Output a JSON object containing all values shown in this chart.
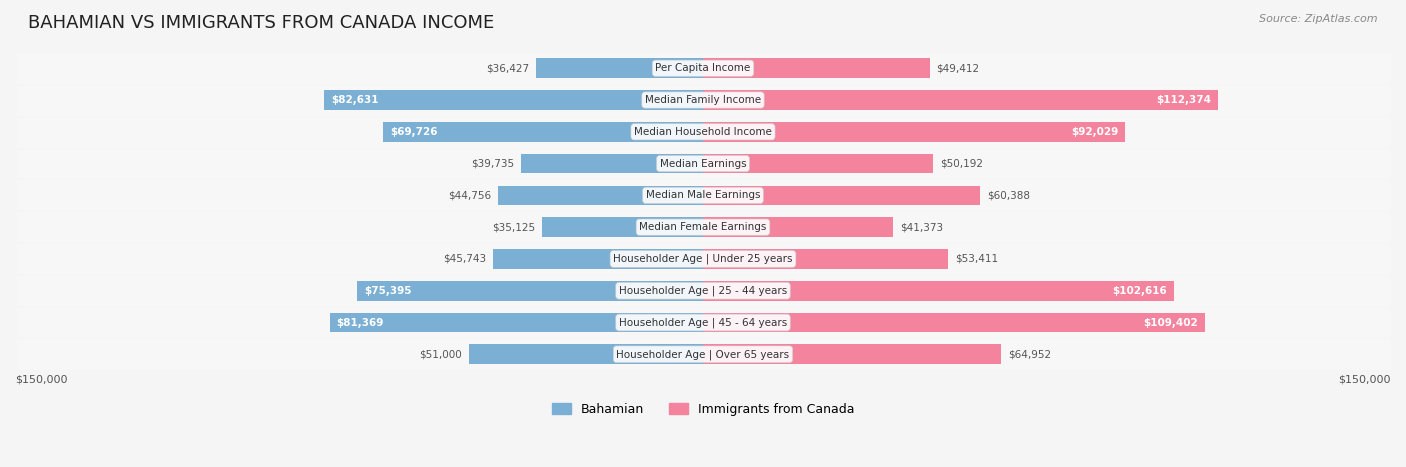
{
  "title": "BAHAMIAN VS IMMIGRANTS FROM CANADA INCOME",
  "source": "Source: ZipAtlas.com",
  "categories": [
    "Per Capita Income",
    "Median Family Income",
    "Median Household Income",
    "Median Earnings",
    "Median Male Earnings",
    "Median Female Earnings",
    "Householder Age | Under 25 years",
    "Householder Age | 25 - 44 years",
    "Householder Age | 45 - 64 years",
    "Householder Age | Over 65 years"
  ],
  "bahamian_values": [
    36427,
    82631,
    69726,
    39735,
    44756,
    35125,
    45743,
    75395,
    81369,
    51000
  ],
  "canada_values": [
    49412,
    112374,
    92029,
    50192,
    60388,
    41373,
    53411,
    102616,
    109402,
    64952
  ],
  "bahamian_color": "#7bafd4",
  "canada_color": "#f4849e",
  "bahamian_color_dark": "#5a8fc0",
  "canada_color_dark": "#e8607a",
  "max_value": 150000,
  "background_color": "#f5f5f5",
  "row_bg_color": "#f0f0f0",
  "legend_bahamian": "Bahamian",
  "legend_canada": "Immigrants from Canada",
  "xlabel_left": "$150,000",
  "xlabel_right": "$150,000"
}
